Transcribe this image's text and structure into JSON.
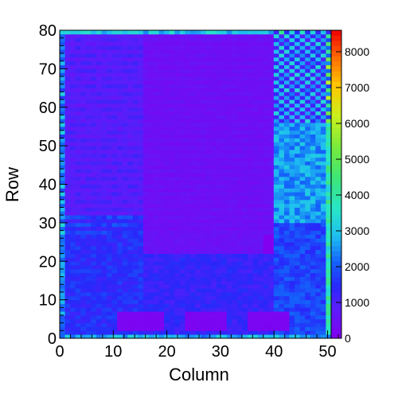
{
  "chart_data": {
    "type": "heatmap",
    "title": "",
    "xlabel": "Column",
    "ylabel": "Row",
    "xlim": [
      0,
      52
    ],
    "ylim": [
      0,
      80
    ],
    "x_ticks": [
      "0",
      "10",
      "20",
      "30",
      "40",
      "50"
    ],
    "y_ticks": [
      "0",
      "10",
      "20",
      "30",
      "40",
      "50",
      "60",
      "70",
      "80"
    ],
    "z_range": [
      0,
      8600
    ],
    "colorbar_ticks": [
      "0",
      "1000",
      "2000",
      "3000",
      "4000",
      "5000",
      "6000",
      "7000",
      "8000"
    ],
    "colorscale": "ROOT kBird/rainbow (violet-blue-cyan-green-yellow-red)",
    "grid": false,
    "legend": "colorbar at right",
    "n_columns": 52,
    "n_rows": 80,
    "regions": [
      {
        "desc": "top-left band",
        "cols": [
          0,
          16
        ],
        "rows": [
          32,
          80
        ],
        "level": 900
      },
      {
        "desc": "upper middle",
        "cols": [
          16,
          41
        ],
        "rows": [
          27,
          80
        ],
        "level": 450
      },
      {
        "desc": "lower middle",
        "cols": [
          16,
          39
        ],
        "rows": [
          22,
          27
        ],
        "level": 500
      },
      {
        "desc": "lower left",
        "cols": [
          0,
          16
        ],
        "rows": [
          0,
          32
        ],
        "level": 1500
      },
      {
        "desc": "lower center",
        "cols": [
          16,
          41
        ],
        "rows": [
          0,
          22
        ],
        "level": 1300
      },
      {
        "desc": "right upper checker",
        "cols": [
          41,
          51
        ],
        "rows": [
          56,
          80
        ],
        "level": 2100
      },
      {
        "desc": "right middle",
        "cols": [
          41,
          51
        ],
        "rows": [
          30,
          56
        ],
        "level": 2600
      },
      {
        "desc": "right lower",
        "cols": [
          41,
          51
        ],
        "rows": [
          0,
          30
        ],
        "level": 1800
      },
      {
        "desc": "bottom violet block 1",
        "cols": [
          11,
          20
        ],
        "rows": [
          2,
          7
        ],
        "level": 150
      },
      {
        "desc": "bottom violet block 2",
        "cols": [
          24,
          32
        ],
        "rows": [
          2,
          7
        ],
        "level": 150
      },
      {
        "desc": "bottom violet block 3",
        "cols": [
          36,
          44
        ],
        "rows": [
          2,
          7
        ],
        "level": 150
      },
      {
        "desc": "edge column right",
        "cols": [
          51,
          52
        ],
        "rows": [
          0,
          80
        ],
        "level": 3800
      },
      {
        "desc": "edge column left",
        "cols": [
          0,
          1
        ],
        "rows": [
          0,
          80
        ],
        "level": 2400
      },
      {
        "desc": "top edge row",
        "cols": [
          0,
          52
        ],
        "rows": [
          79,
          80
        ],
        "level": 2600
      },
      {
        "desc": "bottom edge row",
        "cols": [
          0,
          52
        ],
        "rows": [
          0,
          1
        ],
        "level": 2700
      }
    ]
  }
}
